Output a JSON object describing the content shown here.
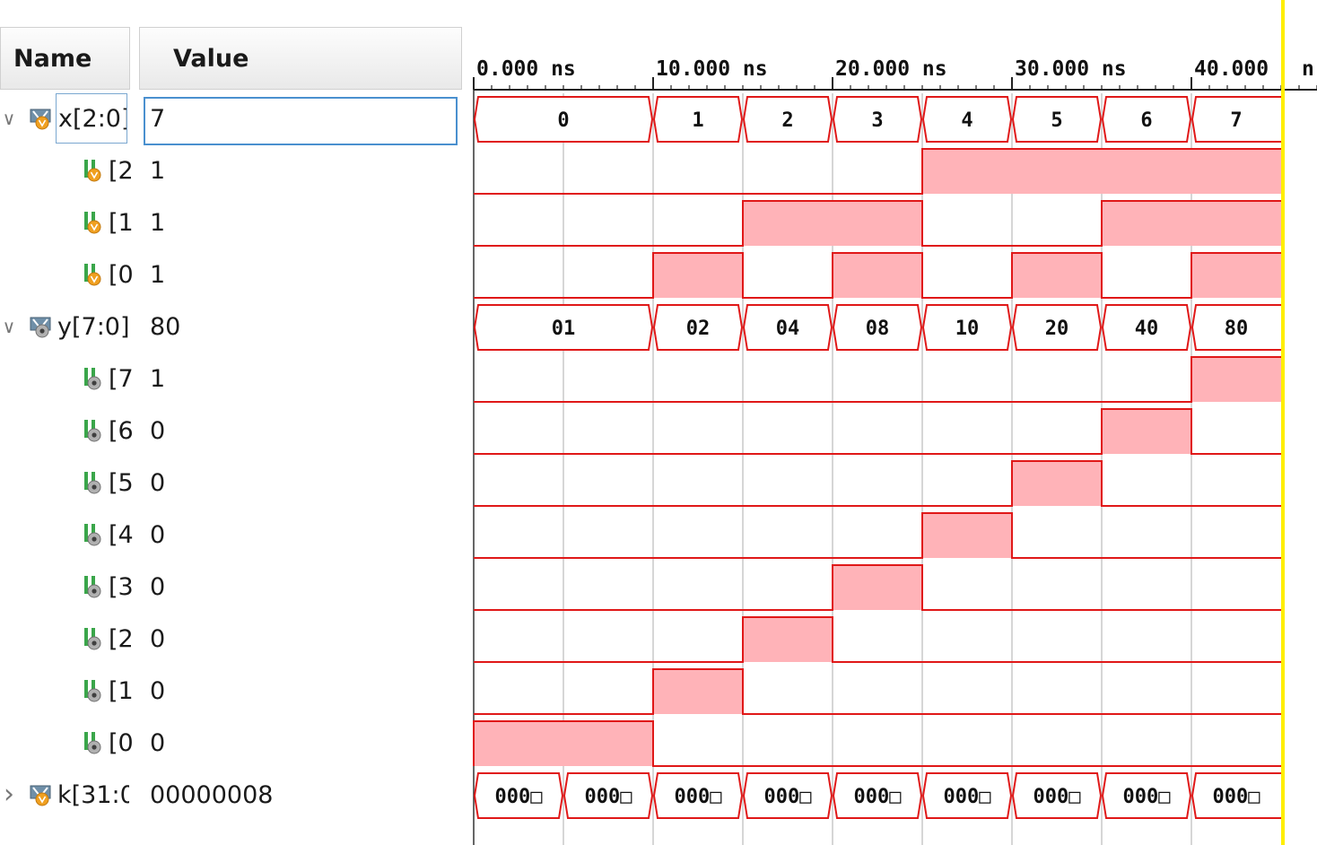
{
  "headers": {
    "name": "Name",
    "value": "Value"
  },
  "timeline": {
    "ticks": [
      "0.000 ns",
      "10.000 ns",
      "20.000 ns",
      "30.000 ns",
      "40.000",
      "n"
    ]
  },
  "signals": [
    {
      "id": "x",
      "name": "x[2:0]",
      "value": "7",
      "level": 0,
      "expandable": true,
      "expanded": true,
      "type": "bus",
      "icon": "vector-input-icon",
      "selected": true
    },
    {
      "id": "x2",
      "name": "[2",
      "value": "1",
      "level": 1,
      "type": "bit",
      "icon": "bit-input-icon"
    },
    {
      "id": "x1",
      "name": "[1",
      "value": "1",
      "level": 1,
      "type": "bit",
      "icon": "bit-input-icon"
    },
    {
      "id": "x0",
      "name": "[0",
      "value": "1",
      "level": 1,
      "type": "bit",
      "icon": "bit-input-icon"
    },
    {
      "id": "y",
      "name": "y[7:0]",
      "value": "80",
      "level": 0,
      "expandable": true,
      "expanded": true,
      "type": "bus",
      "icon": "vector-output-icon"
    },
    {
      "id": "y7",
      "name": "[7",
      "value": "1",
      "level": 1,
      "type": "bit",
      "icon": "bit-output-icon"
    },
    {
      "id": "y6",
      "name": "[6",
      "value": "0",
      "level": 1,
      "type": "bit",
      "icon": "bit-output-icon"
    },
    {
      "id": "y5",
      "name": "[5",
      "value": "0",
      "level": 1,
      "type": "bit",
      "icon": "bit-output-icon"
    },
    {
      "id": "y4",
      "name": "[4",
      "value": "0",
      "level": 1,
      "type": "bit",
      "icon": "bit-output-icon"
    },
    {
      "id": "y3",
      "name": "[3",
      "value": "0",
      "level": 1,
      "type": "bit",
      "icon": "bit-output-icon"
    },
    {
      "id": "y2",
      "name": "[2",
      "value": "0",
      "level": 1,
      "type": "bit",
      "icon": "bit-output-icon"
    },
    {
      "id": "y1",
      "name": "[1",
      "value": "0",
      "level": 1,
      "type": "bit",
      "icon": "bit-output-icon"
    },
    {
      "id": "y0",
      "name": "[0",
      "value": "0",
      "level": 1,
      "type": "bit",
      "icon": "bit-output-icon"
    },
    {
      "id": "k",
      "name": "k[31:0",
      "value": "00000008",
      "level": 0,
      "expandable": true,
      "expanded": false,
      "type": "bus",
      "icon": "vector-input-icon"
    }
  ],
  "waveforms": {
    "x": {
      "segments": [
        {
          "start": 0,
          "end": 10,
          "label": "0"
        },
        {
          "start": 10,
          "end": 15,
          "label": "1"
        },
        {
          "start": 15,
          "end": 20,
          "label": "2"
        },
        {
          "start": 20,
          "end": 25,
          "label": "3"
        },
        {
          "start": 25,
          "end": 30,
          "label": "4"
        },
        {
          "start": 30,
          "end": 35,
          "label": "5"
        },
        {
          "start": 35,
          "end": 40,
          "label": "6"
        },
        {
          "start": 40,
          "end": 45,
          "label": "7"
        }
      ]
    },
    "x2": {
      "highs": [
        [
          25,
          45
        ]
      ]
    },
    "x1": {
      "highs": [
        [
          15,
          25
        ],
        [
          35,
          45
        ]
      ]
    },
    "x0": {
      "highs": [
        [
          10,
          15
        ],
        [
          20,
          25
        ],
        [
          30,
          35
        ],
        [
          40,
          45
        ]
      ]
    },
    "y": {
      "segments": [
        {
          "start": 0,
          "end": 10,
          "label": "01"
        },
        {
          "start": 10,
          "end": 15,
          "label": "02"
        },
        {
          "start": 15,
          "end": 20,
          "label": "04"
        },
        {
          "start": 20,
          "end": 25,
          "label": "08"
        },
        {
          "start": 25,
          "end": 30,
          "label": "10"
        },
        {
          "start": 30,
          "end": 35,
          "label": "20"
        },
        {
          "start": 35,
          "end": 40,
          "label": "40"
        },
        {
          "start": 40,
          "end": 45,
          "label": "80"
        }
      ]
    },
    "y7": {
      "highs": [
        [
          40,
          45
        ]
      ]
    },
    "y6": {
      "highs": [
        [
          35,
          40
        ]
      ]
    },
    "y5": {
      "highs": [
        [
          30,
          35
        ]
      ]
    },
    "y4": {
      "highs": [
        [
          25,
          30
        ]
      ]
    },
    "y3": {
      "highs": [
        [
          20,
          25
        ]
      ]
    },
    "y2": {
      "highs": [
        [
          15,
          20
        ]
      ]
    },
    "y1": {
      "highs": [
        [
          10,
          15
        ]
      ]
    },
    "y0": {
      "highs": [
        [
          0,
          10
        ]
      ]
    },
    "k": {
      "segments": [
        {
          "start": 0,
          "end": 5,
          "label": "000□"
        },
        {
          "start": 5,
          "end": 10,
          "label": "000□"
        },
        {
          "start": 10,
          "end": 15,
          "label": "000□"
        },
        {
          "start": 15,
          "end": 20,
          "label": "000□"
        },
        {
          "start": 20,
          "end": 25,
          "label": "000□"
        },
        {
          "start": 25,
          "end": 30,
          "label": "000□"
        },
        {
          "start": 30,
          "end": 35,
          "label": "000□"
        },
        {
          "start": 35,
          "end": 40,
          "label": "000□"
        },
        {
          "start": 40,
          "end": 45,
          "label": "000□"
        }
      ]
    }
  },
  "time_range_ns": [
    0,
    45
  ],
  "cursor_ns": 45,
  "colors": {
    "wave": "#e01818",
    "wave_fill": "#ffb3b8",
    "cursor": "#ffee00",
    "grid": "#c8c8c8"
  }
}
